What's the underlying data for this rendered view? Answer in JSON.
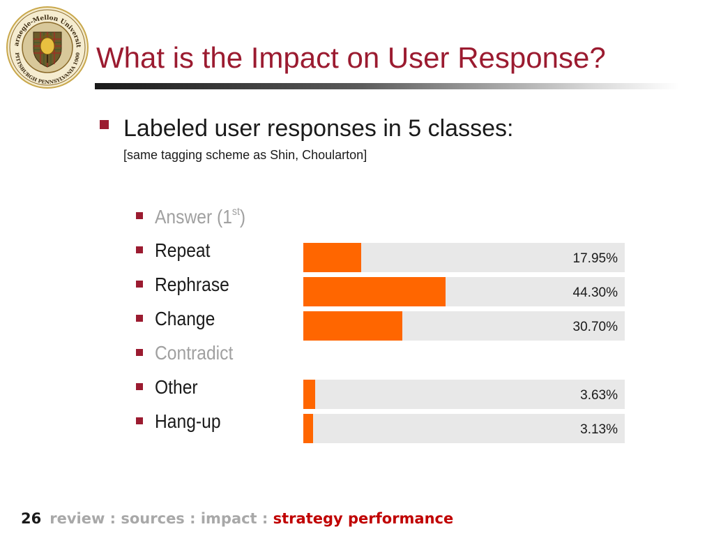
{
  "slide": {
    "title": "What is the Impact on User Response?",
    "logo": {
      "name": "Carnegie Mellon University seal",
      "text_top": "Carnegie-Mellon University",
      "text_bottom": "PITTSBURGH PENNSYLVANIA 1900"
    },
    "bullet": {
      "text": "Labeled user responses in 5 classes:",
      "subtext": "[same tagging scheme as Shin, Choularton]"
    },
    "classes": [
      {
        "label": "Answer (1",
        "sup": "st",
        "suffix": ")",
        "muted": true,
        "value": null
      },
      {
        "label": "Repeat",
        "muted": false,
        "value": 17.95,
        "value_label": "17.95%"
      },
      {
        "label": "Rephrase",
        "muted": false,
        "value": 44.3,
        "value_label": "44.30%"
      },
      {
        "label": "Change",
        "muted": false,
        "value": 30.7,
        "value_label": "30.70%"
      },
      {
        "label": "Contradict",
        "muted": true,
        "value": null
      },
      {
        "label": "Other",
        "muted": false,
        "value": 3.63,
        "value_label": "3.63%"
      },
      {
        "label": "Hang-up",
        "muted": false,
        "value": 3.13,
        "value_label": "3.13%"
      }
    ],
    "footer": {
      "page": "26",
      "breadcrumb": "review : sources : impact : ",
      "current": "strategy performance"
    }
  },
  "colors": {
    "title": "#9b1b30",
    "bullet": "#9b1b30",
    "bar_fill": "#ff6600",
    "bar_track": "#e8e8e8",
    "footer_current": "#c00000"
  },
  "chart_data": {
    "type": "bar",
    "orientation": "horizontal",
    "categories": [
      "Repeat",
      "Rephrase",
      "Change",
      "Other",
      "Hang-up"
    ],
    "values": [
      17.95,
      44.3,
      30.7,
      3.63,
      3.13
    ],
    "value_labels": [
      "17.95%",
      "44.30%",
      "30.70%",
      "3.63%",
      "3.13%"
    ],
    "xlim": [
      0,
      100
    ],
    "grid": false,
    "legend": "none"
  }
}
